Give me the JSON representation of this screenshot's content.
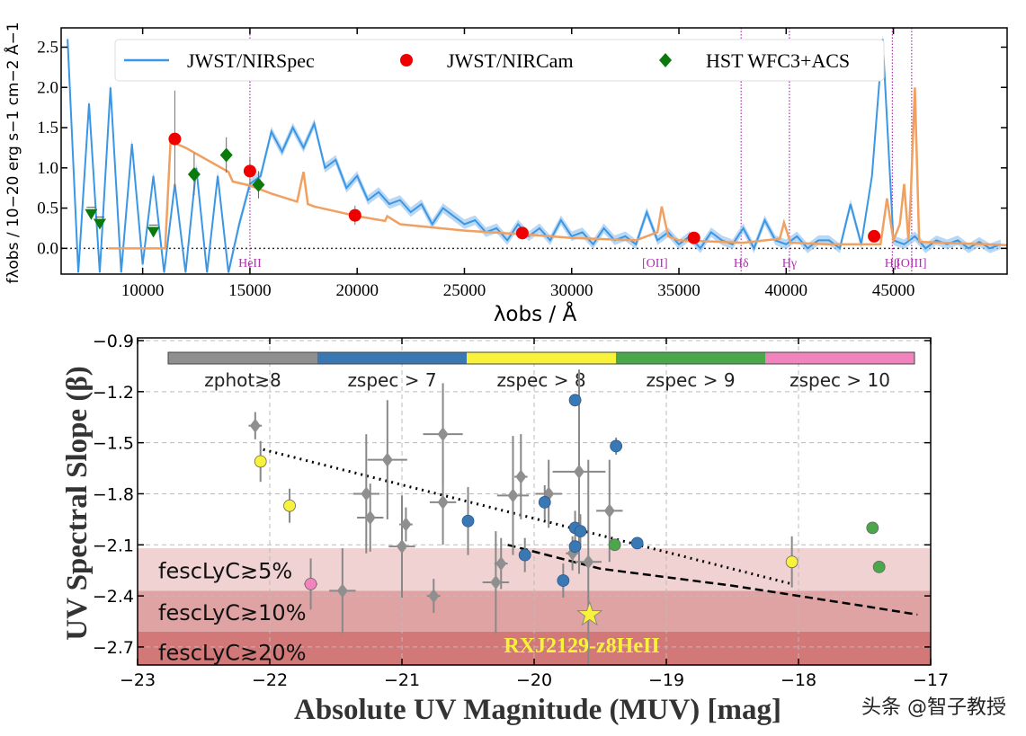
{
  "chart_data": [
    {
      "type": "line",
      "xlabel": "λobs / Å",
      "ylabel": "fλobs / 10−20 erg s−1 cm−2 Å−1",
      "xlim": [
        6200,
        50300
      ],
      "ylim": [
        -0.32,
        2.74
      ],
      "xticks": [
        10000,
        15000,
        20000,
        25000,
        30000,
        35000,
        40000,
        45000
      ],
      "yticks": [
        0.0,
        0.5,
        1.0,
        1.5,
        2.0,
        2.5
      ],
      "legend": {
        "placement": "top",
        "entries": [
          "JWST/NIRSpec",
          "JWST/NIRCam",
          "HST WFC3+ACS"
        ]
      },
      "colors": {
        "spectrum": "#3a97e6",
        "model": "#f0a060",
        "nircam": "#ee0000",
        "hst": "#0a7a0a",
        "lines": "#b030b0"
      },
      "spectrum": {
        "x_start": 6500,
        "x_step": 500,
        "y": [
          2.6,
          -0.3,
          1.8,
          -0.3,
          2.0,
          -0.3,
          1.3,
          -0.2,
          0.9,
          -0.3,
          0.8,
          -0.3,
          1.0,
          -0.3,
          0.9,
          -0.3,
          0.3,
          0.8,
          0.9,
          1.45,
          1.2,
          1.5,
          1.25,
          1.55,
          1.0,
          1.1,
          0.75,
          0.9,
          0.6,
          0.7,
          0.55,
          0.6,
          0.45,
          0.55,
          0.3,
          0.5,
          0.4,
          0.3,
          0.35,
          0.2,
          0.25,
          0.1,
          0.3,
          0.15,
          0.25,
          0.1,
          0.35,
          0.15,
          0.2,
          0.05,
          0.25,
          0.1,
          0.15,
          0.05,
          0.45,
          0.1,
          0.2,
          0.05,
          0.15,
          0.0,
          0.2,
          0.1,
          0.05,
          0.25,
          0.0,
          0.35,
          0.1,
          0.05,
          0.15,
          0.0,
          0.1,
          0.1,
          0.0,
          0.55,
          0.05,
          0.9,
          2.6,
          0.1,
          0.05,
          0.15,
          0.0,
          0.1,
          0.05,
          0.1,
          0.0,
          0.08,
          0.0,
          0.05
        ]
      },
      "model": {
        "x": [
          8400,
          11050,
          11300,
          12000,
          13000,
          14000,
          14200,
          15000,
          16000,
          17200,
          17500,
          17700,
          18000,
          20000,
          21300,
          21400,
          22000,
          25000,
          28000,
          30000,
          33000,
          34000,
          34200,
          34500,
          35000,
          38000,
          39700,
          39900,
          40200,
          42000,
          44400,
          44700,
          45000,
          45300,
          45500,
          45700,
          45800,
          46000,
          46200,
          50300
        ],
        "y": [
          0.0,
          0.0,
          1.33,
          1.25,
          1.1,
          0.95,
          0.83,
          0.78,
          0.68,
          0.58,
          0.95,
          0.55,
          0.52,
          0.4,
          0.34,
          0.4,
          0.3,
          0.22,
          0.17,
          0.13,
          0.1,
          0.2,
          0.52,
          0.15,
          0.1,
          0.07,
          0.12,
          0.32,
          0.07,
          0.05,
          0.05,
          0.62,
          0.1,
          0.3,
          0.8,
          0.1,
          0.6,
          2.0,
          0.08,
          0.04
        ]
      },
      "nircam": [
        [
          11500,
          1.36,
          0.6
        ],
        [
          15000,
          0.96,
          0.17
        ],
        [
          19900,
          0.41,
          0.12
        ],
        [
          27700,
          0.19,
          0.03
        ],
        [
          35700,
          0.13,
          0.03
        ],
        [
          44100,
          0.15,
          0.03
        ]
      ],
      "hst": [
        [
          12400,
          0.92,
          0.26
        ],
        [
          13900,
          1.16,
          0.22
        ],
        [
          15400,
          0.79,
          0.17
        ]
      ],
      "hst_upper_limits": [
        [
          7600,
          0.42
        ],
        [
          8000,
          0.3
        ],
        [
          10500,
          0.2
        ]
      ],
      "emission_lines": [
        {
          "label": "HeII",
          "x": 15000
        },
        {
          "label": "[OII]",
          "x": 34300
        },
        {
          "label": "Hδ",
          "x": 37900
        },
        {
          "label": "Hγ",
          "x": 40150
        },
        {
          "label": "Hβ",
          "x": 44950
        },
        {
          "label": "[OIII]",
          "x": 45850
        }
      ]
    },
    {
      "type": "scatter",
      "xlabel": "Absolute UV Magnitude (MUV) [mag]",
      "ylabel": "UV Spectral Slope (β)",
      "xlim": [
        -23,
        -17
      ],
      "ylim": [
        -2.805,
        -0.88
      ],
      "xticks": [
        -23,
        -22,
        -21,
        -20,
        -19,
        -18,
        -17
      ],
      "yticks": [
        -0.9,
        -1.2,
        -1.5,
        -1.8,
        -2.1,
        -2.4,
        -2.7
      ],
      "grid": true,
      "colorbar": [
        {
          "label": "zphot≳8",
          "color": "#8f8f8f"
        },
        {
          "label": "zspec > 7",
          "color": "#3a78b4"
        },
        {
          "label": "zspec > 8",
          "color": "#f8f23a"
        },
        {
          "label": "zspec > 9",
          "color": "#4aa84a"
        },
        {
          "label": "zspec > 10",
          "color": "#f283bd"
        }
      ],
      "bands": [
        {
          "label": "fescLyC≳5%",
          "from": -2.12,
          "to": -2.37,
          "color": "#f0d2d2"
        },
        {
          "label": "fescLyC≳10%",
          "from": -2.37,
          "to": -2.61,
          "color": "#e0a3a3"
        },
        {
          "label": "fescLyC≳20%",
          "from": -2.61,
          "to": -2.9,
          "color": "#d27878"
        }
      ],
      "series": [
        {
          "group": "zphot≳8",
          "marker": "diamond",
          "points": [
            [
              -22.11,
              -1.4,
              0.05,
              0.08
            ],
            [
              -21.27,
              -1.8,
              0.1,
              0.35
            ],
            [
              -21.24,
              -1.94,
              0.1,
              0.2
            ],
            [
              -21.11,
              -1.6,
              0.15,
              0.35
            ],
            [
              -21.0,
              -2.11,
              0.1,
              0.3
            ],
            [
              -20.97,
              -1.98,
              0.05,
              0.1
            ],
            [
              -20.69,
              -1.45,
              0.15,
              0.3
            ],
            [
              -20.69,
              -1.85,
              0.1,
              0.25
            ],
            [
              -20.76,
              -2.4,
              0.05,
              0.1
            ],
            [
              -21.45,
              -2.37,
              0.1,
              0.25
            ],
            [
              -20.25,
              -2.21,
              0.05,
              0.15
            ],
            [
              -20.29,
              -2.32,
              0.1,
              0.3
            ],
            [
              -20.16,
              -1.81,
              0.12,
              0.35
            ],
            [
              -20.1,
              -1.7,
              0.05,
              0.25
            ],
            [
              -19.89,
              -1.8,
              0.1,
              0.2
            ],
            [
              -19.66,
              -1.67,
              0.2,
              0.6
            ],
            [
              -19.43,
              -1.9,
              0.1,
              0.3
            ],
            [
              -19.59,
              -2.2,
              0.1,
              0.6
            ],
            [
              -19.71,
              -2.15,
              0.05,
              0.1
            ]
          ]
        },
        {
          "group": "zspec > 7",
          "marker": "circle",
          "points": [
            [
              -19.69,
              -1.25,
              0.0,
              0.03
            ],
            [
              -19.38,
              -1.52,
              0.03,
              0.05
            ],
            [
              -20.5,
              -1.96,
              0.0,
              0.2
            ],
            [
              -19.92,
              -1.85,
              0.0,
              0.1
            ],
            [
              -19.69,
              -2.0,
              0.0,
              0.1
            ],
            [
              -19.65,
              -2.02,
              0.0,
              0.1
            ],
            [
              -19.69,
              -2.11,
              0.0,
              0.05
            ],
            [
              -20.07,
              -2.16,
              0.0,
              0.1
            ],
            [
              -19.22,
              -2.09,
              0.0,
              0.03
            ],
            [
              -19.78,
              -2.31,
              0.0,
              0.1
            ]
          ]
        },
        {
          "group": "zspec > 8",
          "marker": "circle",
          "points": [
            [
              -22.07,
              -1.61,
              0.0,
              0.12
            ],
            [
              -21.85,
              -1.87,
              0.0,
              0.1
            ],
            [
              -18.05,
              -2.2,
              0.0,
              0.15
            ]
          ]
        },
        {
          "group": "zspec > 9",
          "marker": "circle",
          "points": [
            [
              -19.39,
              -2.1,
              0.0,
              0.0
            ],
            [
              -17.44,
              -2.0,
              0.0,
              0.0
            ],
            [
              -17.39,
              -2.23,
              0.0,
              0.0
            ]
          ]
        },
        {
          "group": "zspec > 10",
          "marker": "circle",
          "points": [
            [
              -21.69,
              -2.33,
              0.05,
              0.15
            ]
          ]
        }
      ],
      "highlight": {
        "label": "RXJ2129-z8HeII",
        "x": -19.58,
        "y": -2.51,
        "color": "#f8f23a"
      },
      "dotted_relation": [
        [
          -22.05,
          -1.54
        ],
        [
          -18.05,
          -2.33
        ]
      ],
      "dashed_relation": [
        [
          -20.2,
          -2.1
        ],
        [
          -19.85,
          -2.17
        ],
        [
          -19.5,
          -2.24
        ],
        [
          -19,
          -2.29
        ],
        [
          -18.5,
          -2.34
        ],
        [
          -18,
          -2.4
        ],
        [
          -17.5,
          -2.46
        ],
        [
          -17.1,
          -2.51
        ]
      ]
    }
  ],
  "watermark": "头条 @智子教授"
}
